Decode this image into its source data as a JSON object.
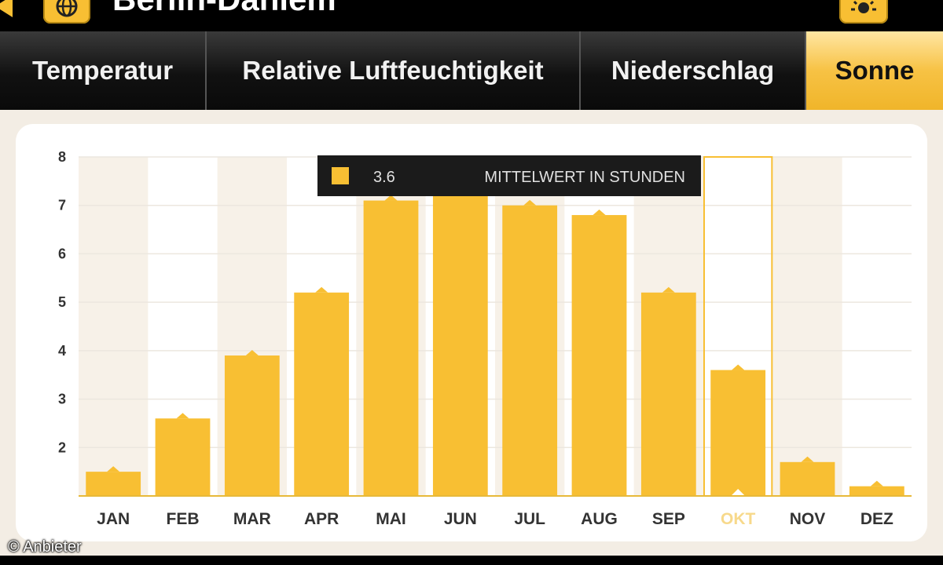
{
  "app": {
    "title": "Berlin-Dahlem",
    "back_icon": "back-arrow-icon",
    "left_button_icon": "globe-icon",
    "right_button_icon": "weather-icon"
  },
  "tabs": [
    {
      "label": "Temperatur",
      "active": false
    },
    {
      "label": "Relative Luftfeuchtigkeit",
      "active": false
    },
    {
      "label": "Niederschlag",
      "active": false
    },
    {
      "label": "Sonne",
      "active": true
    }
  ],
  "tooltip": {
    "value": "3.6",
    "label": "MITTELWERT IN STUNDEN",
    "swatch_color": "#f8bf33"
  },
  "credit": "© Anbieter",
  "colors": {
    "accent": "#f8bf33",
    "selected_label": "#f7d98b"
  },
  "chart_data": {
    "type": "bar",
    "categories": [
      "JAN",
      "FEB",
      "MAR",
      "APR",
      "MAI",
      "JUN",
      "JUL",
      "AUG",
      "SEP",
      "OKT",
      "NOV",
      "DEZ"
    ],
    "values": [
      1.5,
      2.6,
      3.9,
      5.2,
      7.1,
      7.9,
      7.0,
      6.8,
      5.2,
      3.6,
      1.7,
      1.2
    ],
    "yticks": [
      2,
      3,
      4,
      5,
      6,
      7,
      8
    ],
    "ylim": [
      1,
      8
    ],
    "grid": true,
    "selected_index": 9,
    "title": "",
    "xlabel": "",
    "ylabel": ""
  }
}
